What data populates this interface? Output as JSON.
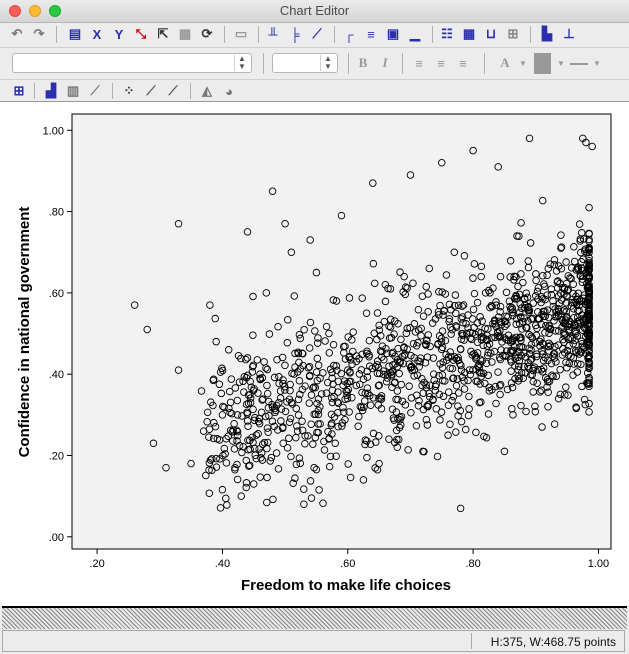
{
  "window": {
    "title": "Chart Editor"
  },
  "toolbar1": {
    "icons": [
      "undo-icon",
      "redo-icon",
      "properties-icon",
      "x-axis-icon",
      "y-axis-icon",
      "select-points-icon",
      "lasso-icon",
      "hide-icon",
      "comment-icon",
      "grid-icon",
      "ref-line-x-icon",
      "ref-line-y-icon",
      "fit-line-icon",
      "title-icon",
      "annotation-icon",
      "textbox-icon",
      "footnote-icon",
      "legend-icon",
      "table-icon",
      "data-labels-icon",
      "layout-icon",
      "sort-icon"
    ]
  },
  "toolbar2": {
    "font_value": "",
    "size_value": "",
    "bold_label": "B",
    "italic_label": "I"
  },
  "toolbar3": {
    "icons": [
      "chart-area-icon",
      "bar-chart-icon",
      "grouped-bar-icon",
      "line-icon",
      "scatter-icon",
      "scatter-fit-icon",
      "line-chart-icon",
      "area-icon",
      "pie-icon"
    ]
  },
  "status": {
    "text": "H:375, W:468.75 points"
  },
  "chart_data": {
    "type": "scatter",
    "xlabel": "Freedom to make life choices",
    "ylabel": "Confidence in national government",
    "xlim": [
      0.16,
      1.02
    ],
    "ylim": [
      -0.03,
      1.04
    ],
    "xticks": [
      ".20",
      ".40",
      ".60",
      ".80",
      "1.00"
    ],
    "yticks": [
      ".00",
      ".20",
      ".40",
      ".60",
      ".80",
      "1.00"
    ],
    "xtick_values": [
      0.2,
      0.4,
      0.6,
      0.8,
      1.0
    ],
    "ytick_values": [
      0.0,
      0.2,
      0.4,
      0.6,
      0.8,
      1.0
    ],
    "marker": "open-circle",
    "n_points": 1400,
    "points": [
      [
        0.26,
        0.57
      ],
      [
        0.28,
        0.51
      ],
      [
        0.33,
        0.77
      ],
      [
        0.29,
        0.23
      ],
      [
        0.31,
        0.17
      ],
      [
        0.33,
        0.41
      ],
      [
        0.35,
        0.18
      ],
      [
        0.37,
        0.26
      ],
      [
        0.38,
        0.57
      ],
      [
        0.39,
        0.48
      ],
      [
        0.4,
        0.3
      ],
      [
        0.41,
        0.46
      ],
      [
        0.42,
        0.17
      ],
      [
        0.43,
        0.1
      ],
      [
        0.44,
        0.44
      ],
      [
        0.44,
        0.75
      ],
      [
        0.45,
        0.13
      ],
      [
        0.46,
        0.4
      ],
      [
        0.47,
        0.6
      ],
      [
        0.48,
        0.85
      ],
      [
        0.49,
        0.33
      ],
      [
        0.5,
        0.77
      ],
      [
        0.51,
        0.7
      ],
      [
        0.52,
        0.26
      ],
      [
        0.53,
        0.08
      ],
      [
        0.54,
        0.73
      ],
      [
        0.55,
        0.65
      ],
      [
        0.57,
        0.5
      ],
      [
        0.58,
        0.23
      ],
      [
        0.59,
        0.79
      ],
      [
        0.6,
        0.41
      ],
      [
        0.62,
        0.32
      ],
      [
        0.63,
        0.55
      ],
      [
        0.64,
        0.87
      ],
      [
        0.65,
        0.18
      ],
      [
        0.66,
        0.62
      ],
      [
        0.67,
        0.4
      ],
      [
        0.68,
        0.29
      ],
      [
        0.69,
        0.64
      ],
      [
        0.7,
        0.89
      ],
      [
        0.71,
        0.47
      ],
      [
        0.72,
        0.21
      ],
      [
        0.73,
        0.66
      ],
      [
        0.74,
        0.37
      ],
      [
        0.75,
        0.92
      ],
      [
        0.76,
        0.25
      ],
      [
        0.77,
        0.7
      ],
      [
        0.78,
        0.07
      ],
      [
        0.79,
        0.5
      ],
      [
        0.8,
        0.95
      ],
      [
        0.81,
        0.33
      ],
      [
        0.82,
        0.6
      ],
      [
        0.83,
        0.43
      ],
      [
        0.84,
        0.91
      ],
      [
        0.85,
        0.21
      ],
      [
        0.86,
        0.56
      ],
      [
        0.87,
        0.74
      ],
      [
        0.88,
        0.39
      ],
      [
        0.89,
        0.98
      ],
      [
        0.9,
        0.52
      ],
      [
        0.91,
        0.27
      ],
      [
        0.92,
        0.66
      ],
      [
        0.93,
        0.45
      ],
      [
        0.94,
        0.71
      ],
      [
        0.95,
        0.59
      ],
      [
        0.96,
        0.44
      ],
      [
        0.97,
        0.58
      ],
      [
        0.98,
        0.97
      ],
      [
        0.975,
        0.98
      ],
      [
        0.99,
        0.96
      ]
    ]
  }
}
